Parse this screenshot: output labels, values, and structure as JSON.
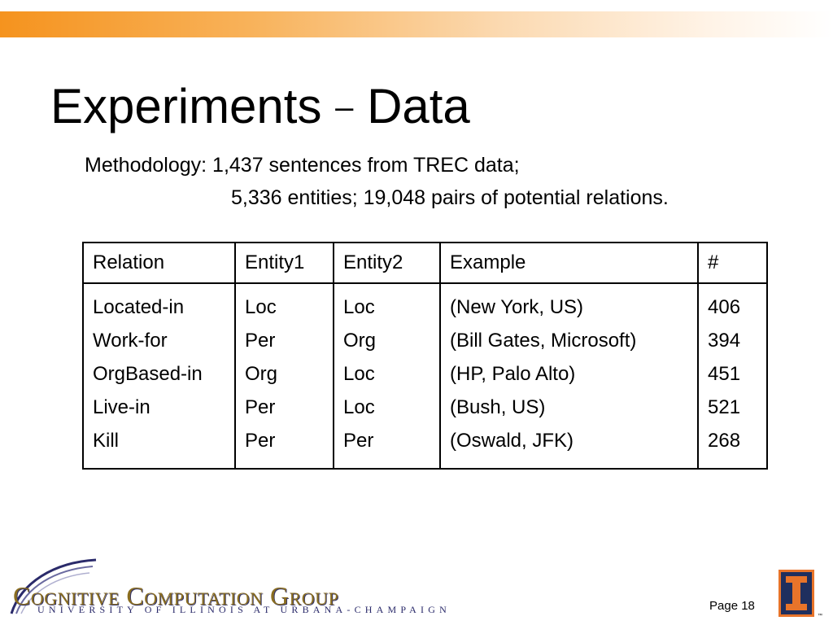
{
  "slide": {
    "title_part1": "Experiments",
    "title_dash": "–",
    "title_part2": "Data",
    "methodology_line1": "Methodology: 1,437 sentences from TREC data;",
    "methodology_line2": "5,336 entities; 19,048 pairs of potential relations.",
    "page_label": "Page 18"
  },
  "table": {
    "headers": [
      "Relation",
      "Entity1",
      "Entity2",
      "Example",
      "#"
    ],
    "rows": [
      {
        "relation": "Located-in",
        "entity1": "Loc",
        "entity2": "Loc",
        "example": "(New York, US)",
        "count": "406"
      },
      {
        "relation": "Work-for",
        "entity1": "Per",
        "entity2": "Org",
        "example": "(Bill Gates, Microsoft)",
        "count": "394"
      },
      {
        "relation": "OrgBased-in",
        "entity1": "Org",
        "entity2": "Loc",
        "example": "(HP, Palo Alto)",
        "count": "451"
      },
      {
        "relation": "Live-in",
        "entity1": "Per",
        "entity2": "Loc",
        "example": "(Bush, US)",
        "count": "521"
      },
      {
        "relation": "Kill",
        "entity1": "Per",
        "entity2": "Per",
        "example": "(Oswald, JFK)",
        "count": "268"
      }
    ]
  },
  "footer": {
    "logo_text": "Cognitive Computation Group",
    "logo_subtext": "UNIVERSITY OF ILLINOIS AT URBANA-CHAMPAIGN",
    "trademark": "™",
    "logo_icon": "university-i-logo",
    "swoosh_icon": "swoosh-logo-icon"
  },
  "colors": {
    "top_bar_accent": "#f5931e",
    "logo_gold": "#8a6d1f",
    "logo_navy": "#2a2a6a",
    "ui_orange": "#e8742a",
    "ui_blue": "#1f2f5e"
  }
}
